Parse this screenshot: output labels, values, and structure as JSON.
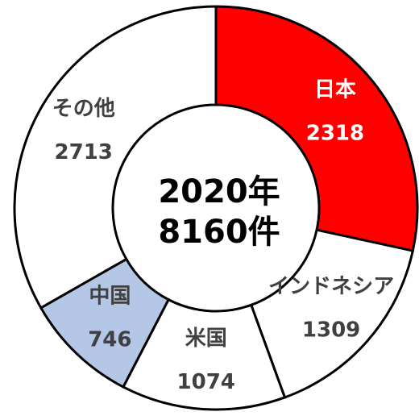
{
  "chart_data": {
    "type": "donut",
    "categories": [
      "日本",
      "インドネシア",
      "米国",
      "中国",
      "その他"
    ],
    "values": [
      2318,
      1309,
      1074,
      746,
      2713
    ],
    "colors": [
      "#ff0000",
      "#ffffff",
      "#ffffff",
      "#b4c7e7",
      "#ffffff"
    ],
    "label_colors": [
      "#ffffff",
      "#404040",
      "#404040",
      "#404040",
      "#404040"
    ],
    "center_text": [
      "2020年",
      "8160件"
    ]
  }
}
